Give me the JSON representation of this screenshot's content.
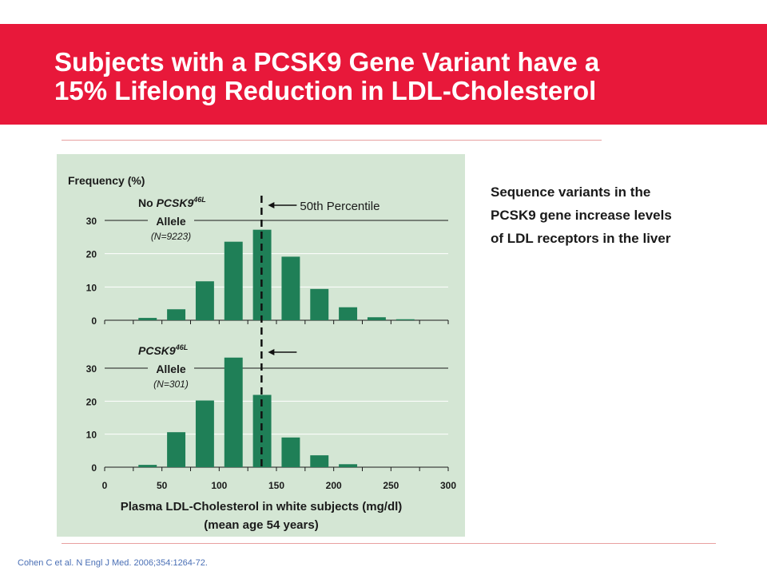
{
  "slide": {
    "title_line1": "Subjects with a PCSK9 Gene Variant have a",
    "title_line2": "15% Lifelong Reduction in LDL-Cholesterol",
    "side_text": [
      "Sequence variants in the",
      "PCSK9 gene increase levels",
      "of LDL receptors in the liver"
    ],
    "citation": "Cohen C et al. N Engl J Med. 2006;354:1264-72.",
    "header_color": "#e8183a",
    "panel_color": "#d4e6d4"
  },
  "chart_data": {
    "type": "bar",
    "ylabel": "Frequency (%)",
    "xlabel_line1": "Plasma LDL-Cholesterol in white subjects (mg/dl)",
    "xlabel_line2": "(mean age 54 years)",
    "x_ticks": [
      0,
      50,
      100,
      150,
      200,
      250,
      300
    ],
    "xlim": [
      0,
      300
    ],
    "y_ticks": [
      0,
      10,
      20,
      30
    ],
    "ylim": [
      0,
      30
    ],
    "bar_color": "#1f7f57",
    "bin_width": 25,
    "percentile_50_value": 137,
    "percentile_label": "50th Percentile",
    "series": [
      {
        "name_prefix": "No ",
        "name_gene": "PCSK9",
        "name_sup": "46L",
        "name_line2": "Allele",
        "n_label": "(N=9223)",
        "bin_centers": [
          37.5,
          62.5,
          87.5,
          112.5,
          137.5,
          162.5,
          187.5,
          212.5,
          237.5,
          262.5
        ],
        "values": [
          0.7,
          3.3,
          11.7,
          23.6,
          27.2,
          19.1,
          9.4,
          3.9,
          0.9,
          0.3
        ]
      },
      {
        "name_prefix": "",
        "name_gene": "PCSK9",
        "name_sup": "46L",
        "name_line2": "Allele",
        "n_label": "(N=301)",
        "bin_centers": [
          37.5,
          62.5,
          87.5,
          112.5,
          137.5,
          162.5,
          187.5,
          212.5
        ],
        "values": [
          0.7,
          10.6,
          20.2,
          33.2,
          21.9,
          9.0,
          3.6,
          0.9
        ]
      }
    ]
  }
}
